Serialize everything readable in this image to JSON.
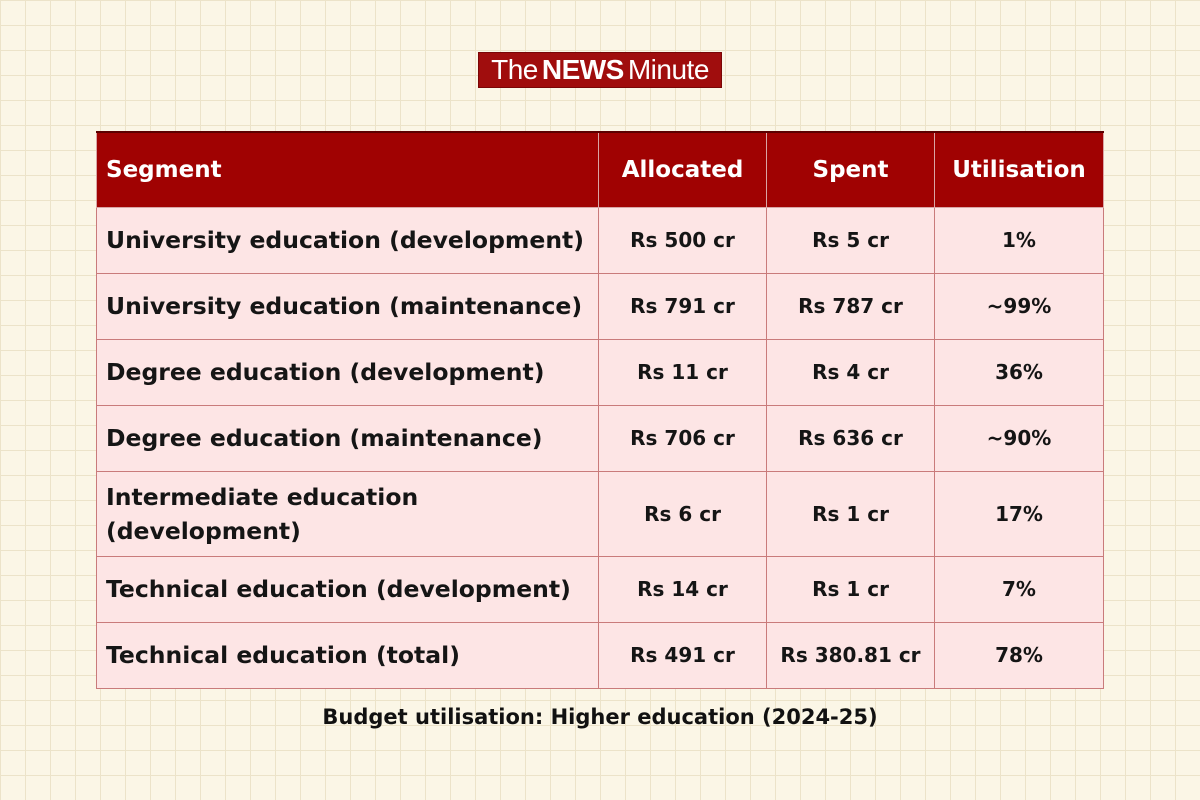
{
  "brand": {
    "logo_text_1": "The",
    "logo_text_2": "NEWS",
    "logo_text_3": "Minute",
    "color": "#a00d0d"
  },
  "table": {
    "header_color": "#a00202",
    "row_color": "#fde5e5",
    "columns": [
      "Segment",
      "Allocated",
      "Spent",
      "Utilisation"
    ],
    "rows": [
      [
        "University education (development)",
        "Rs 500 cr",
        "Rs 5 cr",
        "1%"
      ],
      [
        "University education (maintenance)",
        "Rs 791 cr",
        "Rs 787 cr",
        "~99%"
      ],
      [
        "Degree education (development)",
        "Rs 11 cr",
        "Rs 4 cr",
        "36%"
      ],
      [
        "Degree education (maintenance)",
        "Rs 706 cr",
        "Rs 636 cr",
        "~90%"
      ],
      [
        "Intermediate education (development)",
        "Rs 6 cr",
        "Rs 1 cr",
        "17%"
      ],
      [
        "Technical education (development)",
        "Rs 14 cr",
        "Rs 1 cr",
        "7%"
      ],
      [
        "Technical education (total)",
        "Rs 491 cr",
        "Rs 380.81 cr",
        "78%"
      ]
    ]
  },
  "caption": "Budget utilisation: Higher education (2024-25)"
}
